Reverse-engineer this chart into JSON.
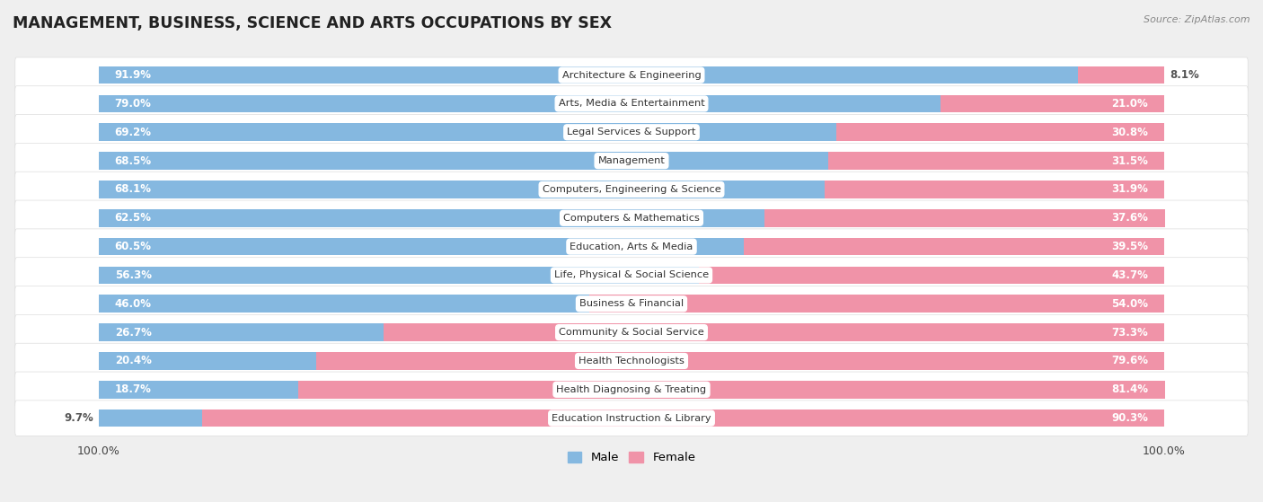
{
  "title": "MANAGEMENT, BUSINESS, SCIENCE AND ARTS OCCUPATIONS BY SEX",
  "source": "Source: ZipAtlas.com",
  "categories": [
    "Architecture & Engineering",
    "Arts, Media & Entertainment",
    "Legal Services & Support",
    "Management",
    "Computers, Engineering & Science",
    "Computers & Mathematics",
    "Education, Arts & Media",
    "Life, Physical & Social Science",
    "Business & Financial",
    "Community & Social Service",
    "Health Technologists",
    "Health Diagnosing & Treating",
    "Education Instruction & Library"
  ],
  "male_pct": [
    91.9,
    79.0,
    69.2,
    68.5,
    68.1,
    62.5,
    60.5,
    56.3,
    46.0,
    26.7,
    20.4,
    18.7,
    9.7
  ],
  "female_pct": [
    8.1,
    21.0,
    30.8,
    31.5,
    31.9,
    37.6,
    39.5,
    43.7,
    54.0,
    73.3,
    79.6,
    81.4,
    90.3
  ],
  "male_color": "#85b8e0",
  "female_color": "#f093a8",
  "bg_color": "#efefef",
  "row_bg_color": "#ffffff",
  "title_fontsize": 12.5,
  "bar_height": 0.62,
  "legend_male": "Male",
  "legend_female": "Female",
  "label_pct_outside_color": "#555555",
  "label_pct_inside_color": "#ffffff"
}
